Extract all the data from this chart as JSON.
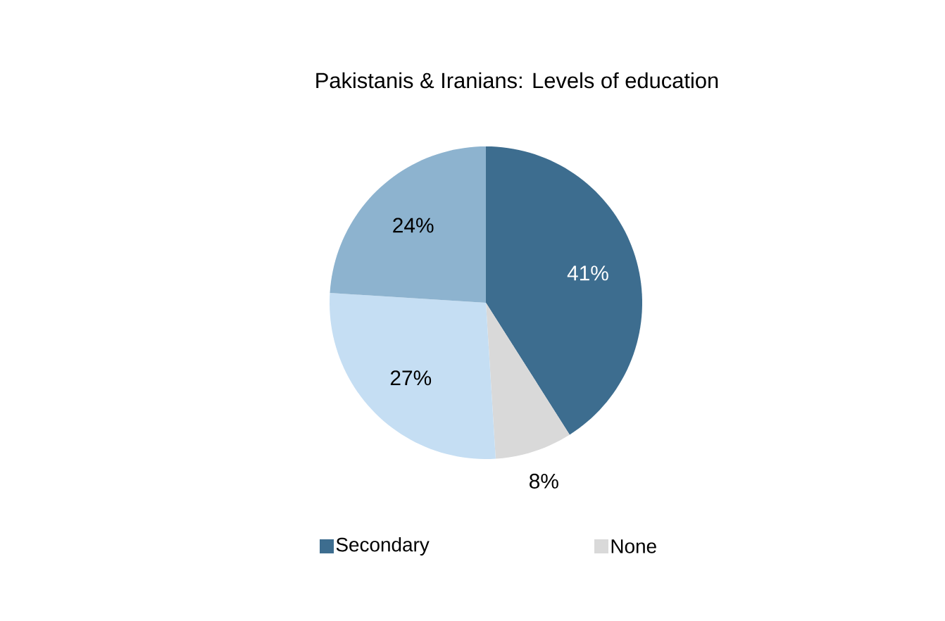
{
  "chart_data": {
    "type": "pie",
    "title": "Pakistanis & Iranians: Levels of education",
    "categories": [
      "Secondary",
      "None",
      null,
      null
    ],
    "values": [
      41,
      8,
      27,
      24
    ],
    "value_labels": [
      "41%",
      "8%",
      "27%",
      "24%"
    ],
    "colors": [
      "#3d6d8f",
      "#d9d9d9",
      "#c5def3",
      "#8db3cf"
    ],
    "legend": "bottom"
  }
}
